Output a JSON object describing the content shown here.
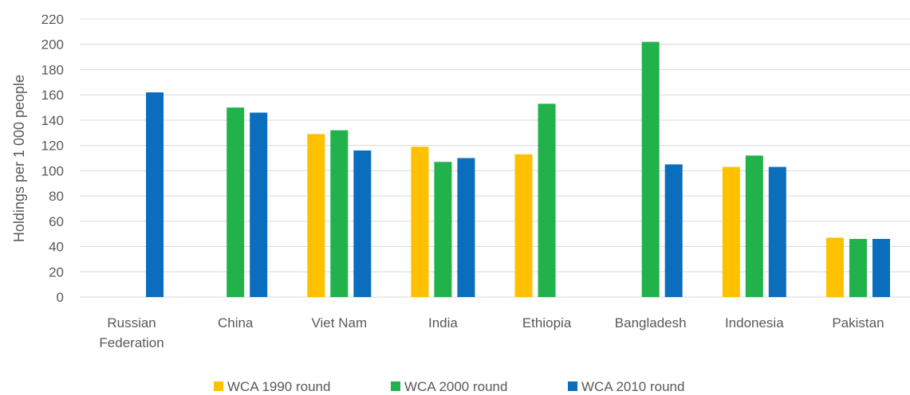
{
  "chart_data": {
    "type": "bar",
    "categories": [
      "Russian\nFederation",
      "China",
      "Viet Nam",
      "India",
      "Ethiopia",
      "Bangladesh",
      "Indonesia",
      "Pakistan"
    ],
    "series": [
      {
        "name": "WCA 1990 round",
        "color": "#FFC000",
        "values": [
          null,
          null,
          129,
          119,
          113,
          null,
          103,
          47
        ]
      },
      {
        "name": "WCA 2000 round",
        "color": "#21B24B",
        "values": [
          null,
          150,
          132,
          107,
          153,
          202,
          112,
          46
        ]
      },
      {
        "name": "WCA 2010 round",
        "color": "#0A6EBD",
        "values": [
          162,
          146,
          116,
          110,
          null,
          105,
          103,
          46
        ]
      }
    ],
    "ylabel": "Holdings per 1 000 people",
    "xlabel": "",
    "ylim": [
      0,
      220
    ],
    "yticks": [
      0,
      20,
      40,
      60,
      80,
      100,
      120,
      140,
      160,
      180,
      200,
      220
    ],
    "grid": true,
    "legend_position": "bottom"
  }
}
